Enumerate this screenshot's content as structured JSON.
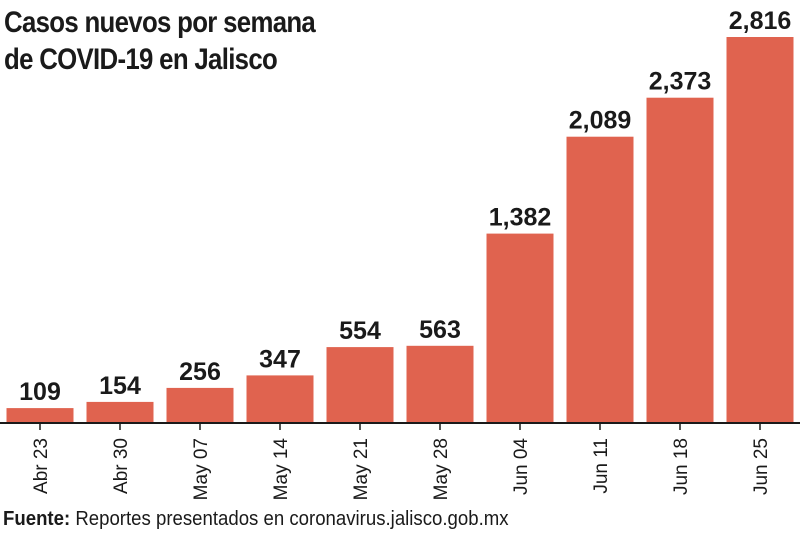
{
  "title": {
    "line1": "Casos nuevos por semana",
    "line2": "de COVID-19 en Jalisco"
  },
  "source": {
    "label": "Fuente:",
    "text": "Reportes presentados en coronavirus.jalisco.gob.mx"
  },
  "colors": {
    "bar": "#e0634f",
    "axis": "#1a1a1a",
    "text": "#1a1a1a"
  },
  "chart_data": {
    "type": "bar",
    "title": "Casos nuevos por semana de COVID-19 en Jalisco",
    "xlabel": "",
    "ylabel": "",
    "categories": [
      "Abr 23",
      "Abr 30",
      "May 07",
      "May 14",
      "May 21",
      "May 28",
      "Jun 04",
      "Jun 11",
      "Jun 18",
      "Jun 25"
    ],
    "values": [
      109,
      154,
      256,
      347,
      554,
      563,
      1382,
      2089,
      2373,
      2816
    ],
    "value_labels": [
      "109",
      "154",
      "256",
      "347",
      "554",
      "563",
      "1,382",
      "2,089",
      "2,373",
      "2,816"
    ],
    "ylim": [
      0,
      2816
    ],
    "grid": false
  }
}
